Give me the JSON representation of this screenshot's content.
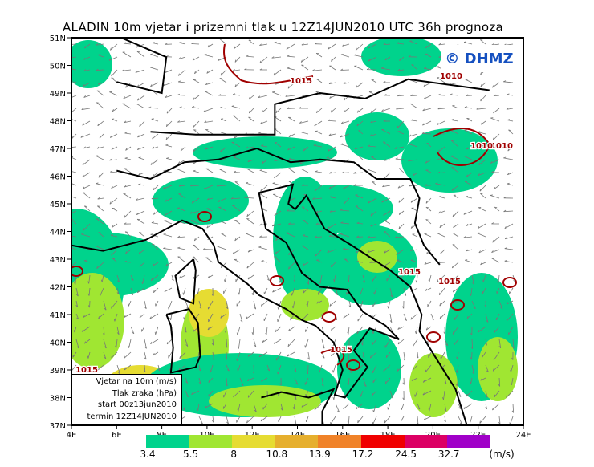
{
  "title": "ALADIN 10m vjetar i prizemni tlak u 12Z14JUN2010 UTC 36h prognoza",
  "logo": "© DHMZ",
  "map": {
    "lat_labels": [
      "51N",
      "50N",
      "49N",
      "48N",
      "47N",
      "46N",
      "45N",
      "44N",
      "43N",
      "42N",
      "41N",
      "40N",
      "39N",
      "38N",
      "37N"
    ],
    "lon_labels": [
      "4E",
      "6E",
      "8E",
      "10E",
      "12E",
      "14E",
      "16E",
      "18E",
      "20E",
      "22E",
      "24E"
    ],
    "isobar_labels": [
      "1015",
      "1010",
      "1010",
      "1015",
      "1015",
      "1015",
      "1015",
      "1010"
    ],
    "isobar_color": "#a00000",
    "coastline_color": "#000000",
    "arrow_color": "#777777"
  },
  "legend": {
    "line1": "Vjetar na 10m (m/s)",
    "line2": "Tlak zraka (hPa)",
    "line3": "start 00z13jun2010",
    "line4": "termin 12Z14JUN2010"
  },
  "colorbar": {
    "labels": [
      "3.4",
      "5.5",
      "8",
      "10.8",
      "13.9",
      "17.2",
      "24.5",
      "32.7"
    ],
    "unit": "(m/s)",
    "colors": [
      "#00d38c",
      "#a0e632",
      "#e6dc32",
      "#e6af2d",
      "#f08228",
      "#f00000",
      "#dc0064",
      "#a000c8"
    ]
  }
}
